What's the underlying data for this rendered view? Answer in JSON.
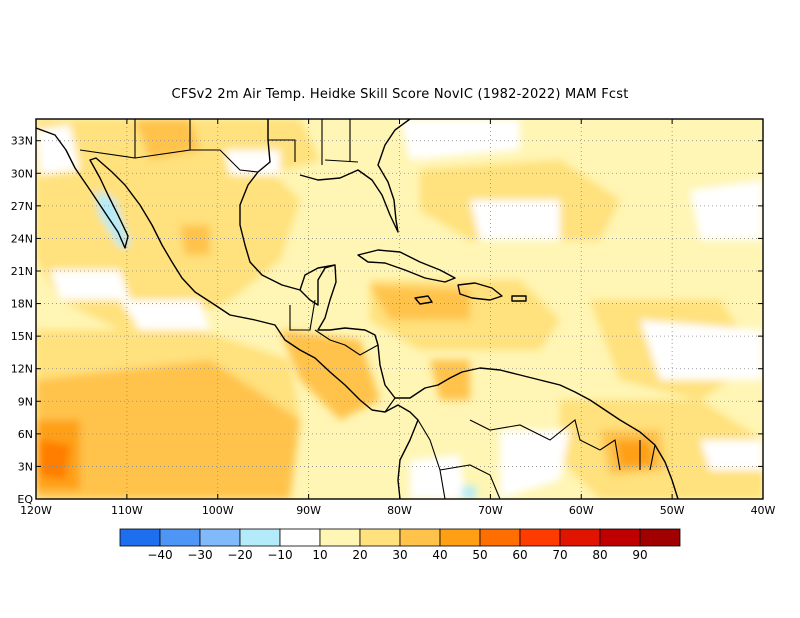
{
  "title": "CFSv2  2m Air Temp. Heidke Skill Score NovIC (1982-2022) MAM Fcst",
  "map": {
    "lon_range": [
      -120,
      -40
    ],
    "lat_range": [
      0,
      35
    ],
    "lat_ticks": [
      {
        "value": 33,
        "label": "33N"
      },
      {
        "value": 30,
        "label": "30N"
      },
      {
        "value": 27,
        "label": "27N"
      },
      {
        "value": 24,
        "label": "24N"
      },
      {
        "value": 21,
        "label": "21N"
      },
      {
        "value": 18,
        "label": "18N"
      },
      {
        "value": 15,
        "label": "15N"
      },
      {
        "value": 12,
        "label": "12N"
      },
      {
        "value": 9,
        "label": "9N"
      },
      {
        "value": 6,
        "label": "6N"
      },
      {
        "value": 3,
        "label": "3N"
      },
      {
        "value": 0,
        "label": "EQ"
      }
    ],
    "lon_ticks": [
      {
        "value": -120,
        "label": "120W"
      },
      {
        "value": -110,
        "label": "110W"
      },
      {
        "value": -100,
        "label": "100W"
      },
      {
        "value": -90,
        "label": "90W"
      },
      {
        "value": -80,
        "label": "80W"
      },
      {
        "value": -70,
        "label": "70W"
      },
      {
        "value": -60,
        "label": "60W"
      },
      {
        "value": -50,
        "label": "50W"
      },
      {
        "value": -40,
        "label": "40W"
      }
    ],
    "gridlines": "dotted"
  },
  "colorbar": {
    "boundaries": [
      -40,
      -30,
      -20,
      -10,
      10,
      20,
      30,
      40,
      50,
      60,
      70,
      80,
      90
    ],
    "labels": [
      "−40",
      "−30",
      "−20",
      "−10",
      "10",
      "20",
      "30",
      "40",
      "50",
      "60",
      "70",
      "80",
      "90"
    ],
    "colors": [
      "#1e6ef0",
      "#4d96f5",
      "#82b9fa",
      "#b4ebfa",
      "#ffffff",
      "#fff5b4",
      "#ffe17d",
      "#ffc34b",
      "#ffa014",
      "#ff6e00",
      "#ff3c00",
      "#e11400",
      "#c00000",
      "#a00000"
    ]
  },
  "chart_data": {
    "type": "heatmap",
    "title": "CFSv2  2m Air Temp. Heidke Skill Score NovIC (1982-2022) MAM Fcst",
    "x_range": [
      -120,
      -40
    ],
    "y_range": [
      0,
      35
    ],
    "units_lon": "degrees",
    "units_lat": "degrees",
    "legend_placement": "bottom",
    "contour_levels": [
      -40,
      -30,
      -20,
      -10,
      10,
      20,
      30,
      40,
      50,
      60,
      70,
      80,
      90
    ],
    "regions": [
      {
        "lon": [
          -120,
          -75
        ],
        "lat": [
          0,
          35
        ],
        "value_range": [
          10,
          30
        ]
      },
      {
        "lon": [
          -120,
          -110
        ],
        "lat": [
          0,
          10
        ],
        "value_range": [
          30,
          60
        ]
      },
      {
        "lon": [
          -70,
          -40
        ],
        "lat": [
          15,
          35
        ],
        "value_range": [
          10,
          30
        ]
      },
      {
        "lon": [
          -56,
          -50
        ],
        "lat": [
          3,
          7
        ],
        "value_range": [
          40,
          50
        ]
      },
      {
        "lon": [
          -114,
          -110
        ],
        "lat": [
          24,
          30
        ],
        "value_range": [
          -20,
          -10
        ]
      },
      {
        "lon": [
          -73,
          -71
        ],
        "lat": [
          0,
          1
        ],
        "value_range": [
          -20,
          -10
        ]
      }
    ]
  }
}
